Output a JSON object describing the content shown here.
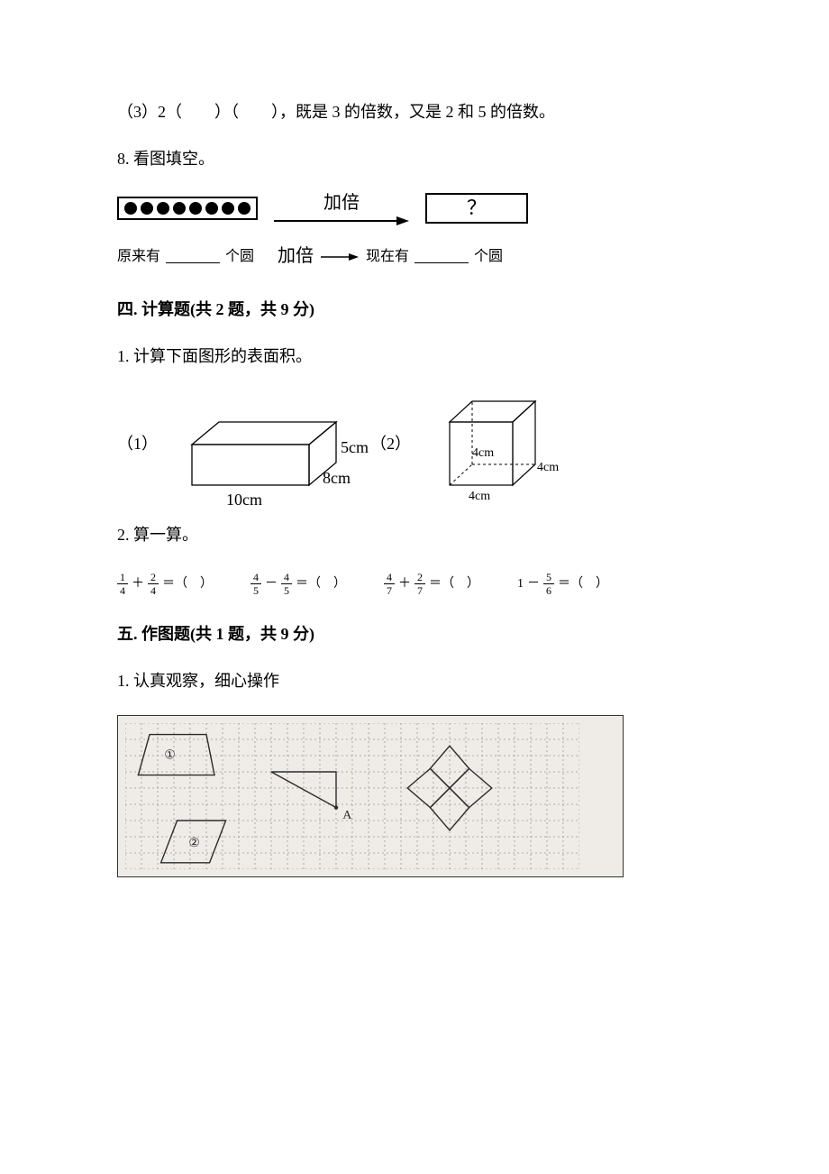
{
  "q7_3": {
    "prefix": "（3）2（　　）（　　），",
    "rest": "既是 3 的倍数，又是 2 和 5 的倍数。"
  },
  "q8": {
    "title": "8. 看图填空。",
    "dots_count": 8,
    "arrow_label": "加倍",
    "question_mark": "？",
    "row2_prefix": "原来有",
    "row2_unit": "个圆",
    "row2_mid_label": "加倍",
    "row2_mid2": "现在有",
    "row2_unit2": "个圆"
  },
  "sec4": {
    "title": "四. 计算题(共 2 题，共 9 分)",
    "q1": {
      "title": "1. 计算下面图形的表面积。",
      "shape1": {
        "label": "（1）",
        "w": "10cm",
        "d": "8cm",
        "h": "5cm"
      },
      "shape2": {
        "label": "（2）",
        "edge": "4cm"
      }
    },
    "q2": {
      "title": "2. 算一算。",
      "items": [
        {
          "a_n": "1",
          "a_d": "4",
          "op": "＋",
          "b_n": "2",
          "b_d": "4"
        },
        {
          "a_n": "4",
          "a_d": "5",
          "op": "－",
          "b_n": "4",
          "b_d": "5"
        },
        {
          "a_n": "4",
          "a_d": "7",
          "op": "＋",
          "b_n": "2",
          "b_d": "7"
        },
        {
          "lhs_whole": "1",
          "op": "－",
          "b_n": "5",
          "b_d": "6"
        }
      ]
    }
  },
  "sec5": {
    "title": "五. 作图题(共 1 题，共 9 分)",
    "q1": "1. 认真观察，细心操作",
    "labels": {
      "one": "①",
      "two": "②",
      "A": "A"
    },
    "grid": {
      "cols": 28,
      "rows": 9,
      "cell": 18,
      "grid_color": "#9b9690",
      "bg": "#efece8",
      "line_color": "#2b2b2b"
    }
  }
}
